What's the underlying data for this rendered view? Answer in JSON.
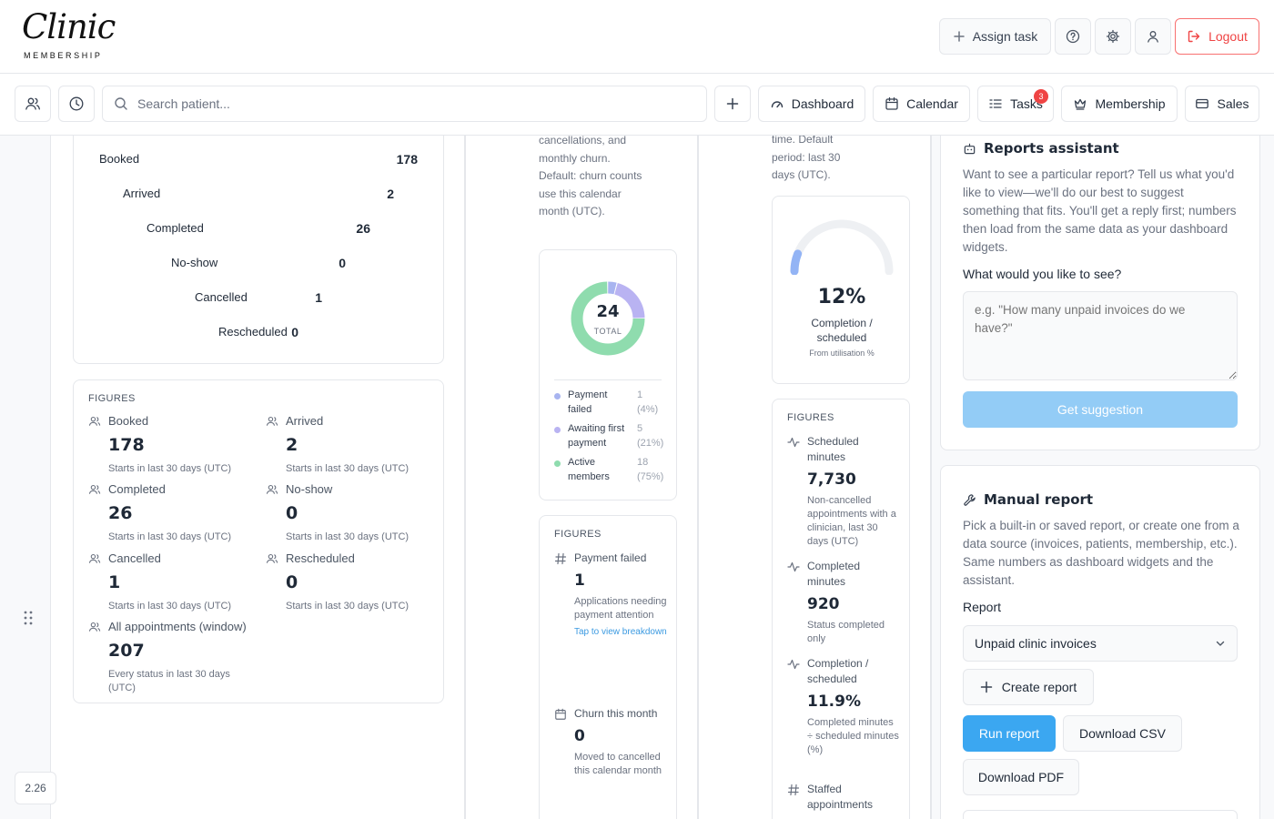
{
  "header": {
    "logo_script": "Clinic",
    "logo_sub": "MEMBERSHIP",
    "assign_task": "Assign task",
    "logout": "Logout"
  },
  "toolbar": {
    "search_placeholder": "Search patient...",
    "nav": [
      {
        "label": "Dashboard",
        "icon": "gauge-icon"
      },
      {
        "label": "Calendar",
        "icon": "calendar-icon"
      },
      {
        "label": "Tasks",
        "icon": "list-icon",
        "badge": "3"
      },
      {
        "label": "Membership",
        "icon": "crown-icon"
      },
      {
        "label": "Sales",
        "icon": "card-icon"
      }
    ]
  },
  "funnel": [
    {
      "label": "Booked",
      "value": "178",
      "color": "#93b4f5"
    },
    {
      "label": "Arrived",
      "value": "2",
      "color": "#a5a8f3"
    },
    {
      "label": "Completed",
      "value": "26",
      "color": "#8ed4be"
    },
    {
      "label": "No-show",
      "value": "0",
      "color": "#f9d38c"
    },
    {
      "label": "Cancelled",
      "value": "1",
      "color": "#c1c6cf"
    },
    {
      "label": "Rescheduled",
      "value": "0",
      "color": "#d0a8f3"
    }
  ],
  "figures_left": {
    "title": "FIGURES",
    "items": [
      {
        "label": "Booked",
        "value": "178",
        "sub": "Starts in last 30 days (UTC)"
      },
      {
        "label": "Arrived",
        "value": "2",
        "sub": "Starts in last 30 days (UTC)"
      },
      {
        "label": "Completed",
        "value": "26",
        "sub": "Starts in last 30 days (UTC)"
      },
      {
        "label": "No-show",
        "value": "0",
        "sub": "Starts in last 30 days (UTC)"
      },
      {
        "label": "Cancelled",
        "value": "1",
        "sub": "Starts in last 30 days (UTC)"
      },
      {
        "label": "Rescheduled",
        "value": "0",
        "sub": "Starts in last 30 days (UTC)"
      },
      {
        "label": "All appointments (window)",
        "value": "207",
        "sub": "Every status in last 30 days (UTC)"
      }
    ]
  },
  "membership": {
    "note": "cancellations, and monthly churn. Default: churn counts use this calendar month (UTC).",
    "donut_total": "24",
    "donut_label": "TOTAL",
    "legend": [
      {
        "name": "Payment failed",
        "count": "1",
        "pct": "(4%)",
        "color": "#a8b4f0",
        "value": 1
      },
      {
        "name": "Awaiting first payment",
        "count": "5",
        "pct": "(21%)",
        "color": "#b9b3f2",
        "value": 5
      },
      {
        "name": "Active members",
        "count": "18",
        "pct": "(75%)",
        "color": "#8fdcae",
        "value": 18
      }
    ],
    "figures_title": "FIGURES",
    "fig1_label": "Payment failed",
    "fig1_value": "1",
    "fig1_sub": "Applications needing payment attention",
    "fig1_link": "Tap to view breakdown",
    "fig2_label": "Churn this month",
    "fig2_value": "0",
    "fig2_sub": "Moved to cancelled this calendar month"
  },
  "utilisation": {
    "note": "time. Default period: last 30 days (UTC).",
    "gauge_value": "12%",
    "gauge_fraction": 0.12,
    "gauge_label": "Completion / scheduled",
    "gauge_sub": "From utilisation %",
    "figures_title": "FIGURES",
    "items": [
      {
        "label": "Scheduled minutes",
        "value": "7,730",
        "sub": "Non-cancelled appointments with a clinician, last 30 days (UTC)"
      },
      {
        "label": "Completed minutes",
        "value": "920",
        "sub": "Status completed only"
      },
      {
        "label": "Completion / scheduled",
        "value": "11.9%",
        "sub": "Completed minutes ÷ scheduled minutes (%)"
      },
      {
        "label": "Staffed appointments",
        "value": "",
        "sub": ""
      }
    ]
  },
  "assistant": {
    "title": "Reports assistant",
    "desc": "Want to see a particular report? Tell us what you'd like to view—we'll do our best to suggest something that fits. You'll get a reply first; numbers then load from the same data as your dashboard widgets.",
    "question": "What would you like to see?",
    "placeholder": "e.g. \"How many unpaid invoices do we have?\"",
    "button": "Get suggestion"
  },
  "manual": {
    "title": "Manual report",
    "desc": "Pick a built-in or saved report, or create one from a data source (invoices, patients, membership, etc.). Same numbers as dashboard widgets and the assistant.",
    "report_label": "Report",
    "report_value": "Unpaid clinic invoices",
    "create": "Create report",
    "run": "Run report",
    "csv": "Download CSV",
    "pdf": "Download PDF"
  },
  "version": "2.26"
}
